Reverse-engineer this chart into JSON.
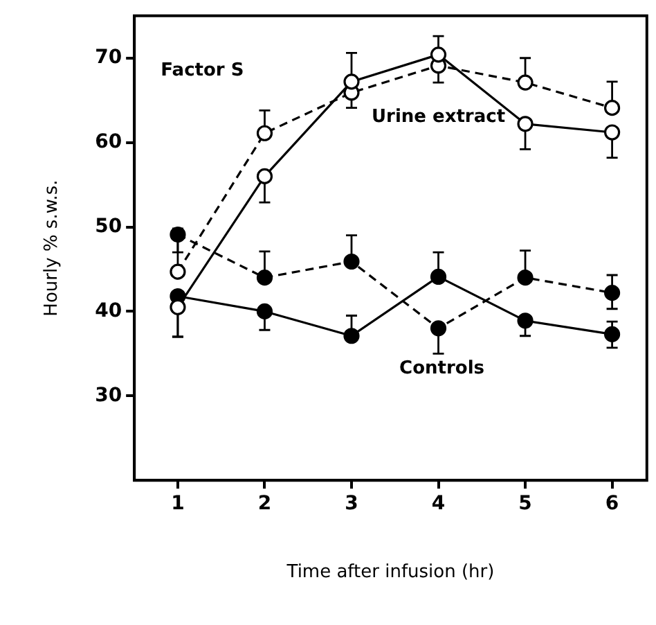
{
  "chart_data": {
    "type": "line",
    "xlabel": "Time after infusion (hr)",
    "ylabel": "Hourly % s.w.s.",
    "x": [
      1,
      2,
      3,
      4,
      5,
      6
    ],
    "xlim": [
      0.5,
      6.4
    ],
    "xticks": [
      1,
      2,
      3,
      4,
      5,
      6
    ],
    "ylim": [
      20,
      75
    ],
    "yticks": [
      30,
      40,
      50,
      60,
      70
    ],
    "marker": "circle",
    "grid": false,
    "legend": false,
    "series": [
      {
        "name": "Urine extract",
        "color": "#000000",
        "line_style": "solid",
        "values": [
          40.5,
          56,
          67.2,
          70.4,
          62.2,
          61.2
        ],
        "errors": [
          [
            37,
            40.5
          ],
          [
            52.9,
            56
          ],
          [
            67.2,
            70.6
          ],
          [
            70.4,
            72.6
          ],
          [
            59.2,
            62.2
          ],
          [
            58.2,
            61.2
          ]
        ]
      },
      {
        "name": "Factor S",
        "color": "#000000",
        "line_style": "dashed",
        "values": [
          44.7,
          61.1,
          65.9,
          69.1,
          67.1,
          64.1
        ],
        "errors": [
          [
            44.7,
            49.8
          ],
          [
            61.1,
            63.8
          ],
          [
            64.1,
            65.9
          ],
          [
            67.1,
            69.1
          ],
          [
            67.1,
            70
          ],
          [
            64.1,
            67.2
          ]
        ]
      },
      {
        "color": "#000000",
        "line_style": "solid",
        "values": [
          41.8,
          40,
          37.1,
          44.1,
          38.9,
          37.3
        ],
        "errors": [
          [
            37,
            41.8
          ],
          [
            37.8,
            40
          ],
          [
            37.1,
            39.5
          ],
          [
            44.1,
            47
          ],
          [
            37.1,
            38.9
          ],
          [
            35.7,
            38.8
          ]
        ]
      },
      {
        "color": "#000000",
        "line_style": "dashed",
        "values": [
          49.1,
          44,
          45.9,
          38,
          44,
          42.2
        ],
        "errors": [
          [
            47,
            49.1
          ],
          [
            44,
            47.1
          ],
          [
            45.9,
            49
          ],
          [
            35,
            38
          ],
          [
            44,
            47.2
          ],
          [
            40.3,
            44.3
          ]
        ]
      }
    ],
    "annotations": [
      "Controls"
    ]
  }
}
